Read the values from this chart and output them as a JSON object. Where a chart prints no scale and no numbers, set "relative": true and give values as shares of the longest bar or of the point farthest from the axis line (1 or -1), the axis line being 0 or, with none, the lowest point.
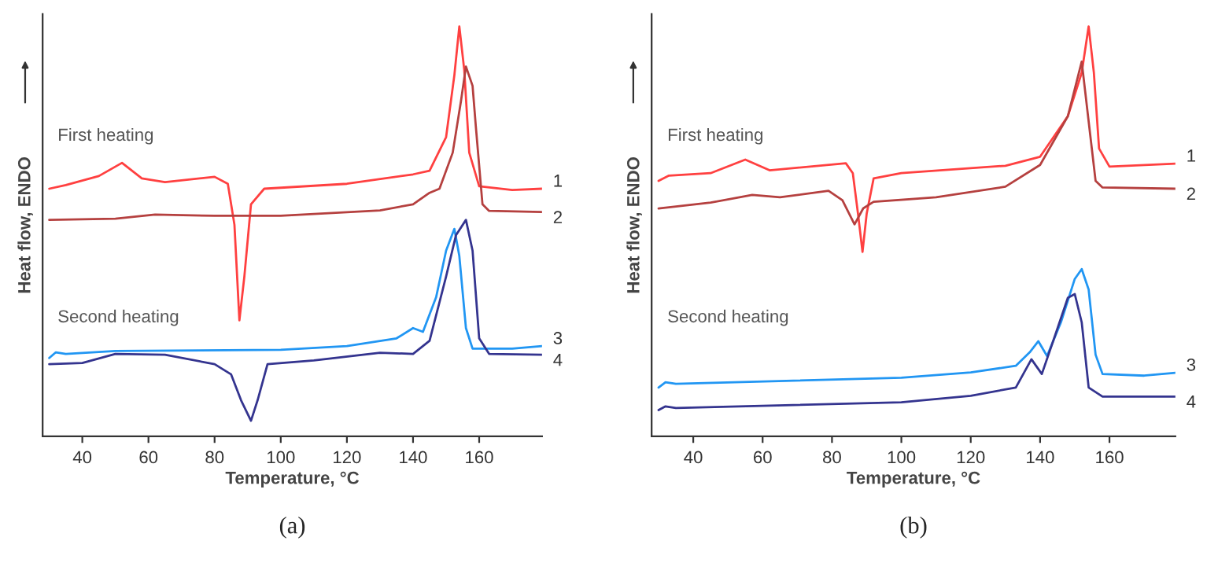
{
  "chart_data": [
    {
      "type": "line",
      "title": "(a)",
      "xlabel": "Temperature, °C",
      "ylabel": "Heat flow, ENDO",
      "relative": true,
      "xlim": [
        28,
        179
      ],
      "xticks": [
        40,
        60,
        80,
        100,
        120,
        140,
        160
      ],
      "grid": false,
      "legend": false,
      "tick_labels": "x",
      "annotations": [
        "First heating",
        "Second heating"
      ],
      "series": [
        {
          "name": "1",
          "color": "#ff4040",
          "x": [
            30,
            35,
            45,
            52,
            58,
            65,
            80,
            84,
            86,
            87.5,
            89,
            91,
            95,
            120,
            140,
            145,
            150,
            152.5,
            154,
            155.5,
            157,
            160,
            170,
            179
          ],
          "values": [
            0.604,
            0.613,
            0.635,
            0.667,
            0.629,
            0.62,
            0.633,
            0.616,
            0.516,
            0.283,
            0.39,
            0.566,
            0.604,
            0.616,
            0.639,
            0.648,
            0.73,
            0.881,
            1.0,
            0.893,
            0.692,
            0.61,
            0.601,
            0.604
          ]
        },
        {
          "name": "2",
          "color": "#b5403f",
          "x": [
            30,
            50,
            62,
            80,
            100,
            130,
            140,
            145,
            148,
            152,
            154.5,
            156,
            158,
            159,
            161,
            163,
            179
          ],
          "values": [
            0.528,
            0.531,
            0.541,
            0.538,
            0.538,
            0.551,
            0.566,
            0.594,
            0.604,
            0.692,
            0.818,
            0.902,
            0.855,
            0.755,
            0.566,
            0.55,
            0.547
          ]
        },
        {
          "name": "3",
          "color": "#2196f3",
          "x": [
            30,
            32,
            35,
            50,
            100,
            120,
            135,
            140,
            143,
            147,
            150,
            152.5,
            154,
            156,
            158,
            170,
            179
          ],
          "values": [
            0.191,
            0.205,
            0.201,
            0.208,
            0.211,
            0.22,
            0.239,
            0.264,
            0.255,
            0.34,
            0.453,
            0.506,
            0.44,
            0.264,
            0.214,
            0.214,
            0.22
          ]
        },
        {
          "name": "4",
          "color": "#34348f",
          "x": [
            30,
            40,
            50,
            65,
            80,
            85,
            88,
            91,
            93,
            96,
            110,
            130,
            140,
            145,
            150,
            153,
            156,
            158,
            160,
            163,
            179
          ],
          "values": [
            0.176,
            0.179,
            0.201,
            0.199,
            0.176,
            0.151,
            0.088,
            0.038,
            0.088,
            0.176,
            0.185,
            0.204,
            0.201,
            0.233,
            0.39,
            0.491,
            0.528,
            0.453,
            0.239,
            0.201,
            0.199
          ]
        }
      ]
    },
    {
      "type": "line",
      "title": "(b)",
      "xlabel": "Temperature, °C",
      "ylabel": "Heat flow, ENDO",
      "relative": true,
      "xlim": [
        28,
        179
      ],
      "xticks": [
        40,
        60,
        80,
        100,
        120,
        140,
        160
      ],
      "grid": false,
      "legend": false,
      "tick_labels": "x",
      "annotations": [
        "First heating",
        "Second heating"
      ],
      "series": [
        {
          "name": "1",
          "color": "#ff4040",
          "x": [
            30,
            33,
            45,
            55,
            62,
            84,
            86,
            87.5,
            88.8,
            90,
            92,
            100,
            130,
            140,
            148,
            152,
            154,
            155.5,
            157,
            160,
            179
          ],
          "values": [
            0.623,
            0.636,
            0.642,
            0.675,
            0.649,
            0.666,
            0.642,
            0.543,
            0.45,
            0.543,
            0.629,
            0.642,
            0.66,
            0.682,
            0.781,
            0.887,
            1.0,
            0.887,
            0.702,
            0.658,
            0.665
          ]
        },
        {
          "name": "2",
          "color": "#b5403f",
          "x": [
            30,
            45,
            57,
            65,
            79,
            83,
            86.5,
            89,
            92,
            110,
            130,
            140,
            148,
            152,
            154,
            156,
            158,
            179
          ],
          "values": [
            0.556,
            0.57,
            0.589,
            0.583,
            0.599,
            0.576,
            0.517,
            0.556,
            0.572,
            0.583,
            0.609,
            0.662,
            0.781,
            0.914,
            0.768,
            0.623,
            0.607,
            0.604
          ]
        },
        {
          "name": "3",
          "color": "#2196f3",
          "x": [
            30,
            32,
            35,
            100,
            120,
            133,
            137,
            139.5,
            142,
            146,
            150,
            152,
            154,
            156,
            158,
            170,
            179
          ],
          "values": [
            0.119,
            0.132,
            0.128,
            0.143,
            0.156,
            0.172,
            0.205,
            0.232,
            0.196,
            0.278,
            0.384,
            0.408,
            0.358,
            0.199,
            0.152,
            0.148,
            0.155
          ]
        },
        {
          "name": "4",
          "color": "#34348f",
          "x": [
            30,
            32,
            35,
            100,
            120,
            133,
            137.5,
            140.5,
            144,
            148,
            150,
            152,
            154,
            158,
            179
          ],
          "values": [
            0.064,
            0.073,
            0.069,
            0.083,
            0.099,
            0.119,
            0.188,
            0.152,
            0.238,
            0.338,
            0.347,
            0.278,
            0.119,
            0.097,
            0.097
          ]
        }
      ]
    }
  ]
}
